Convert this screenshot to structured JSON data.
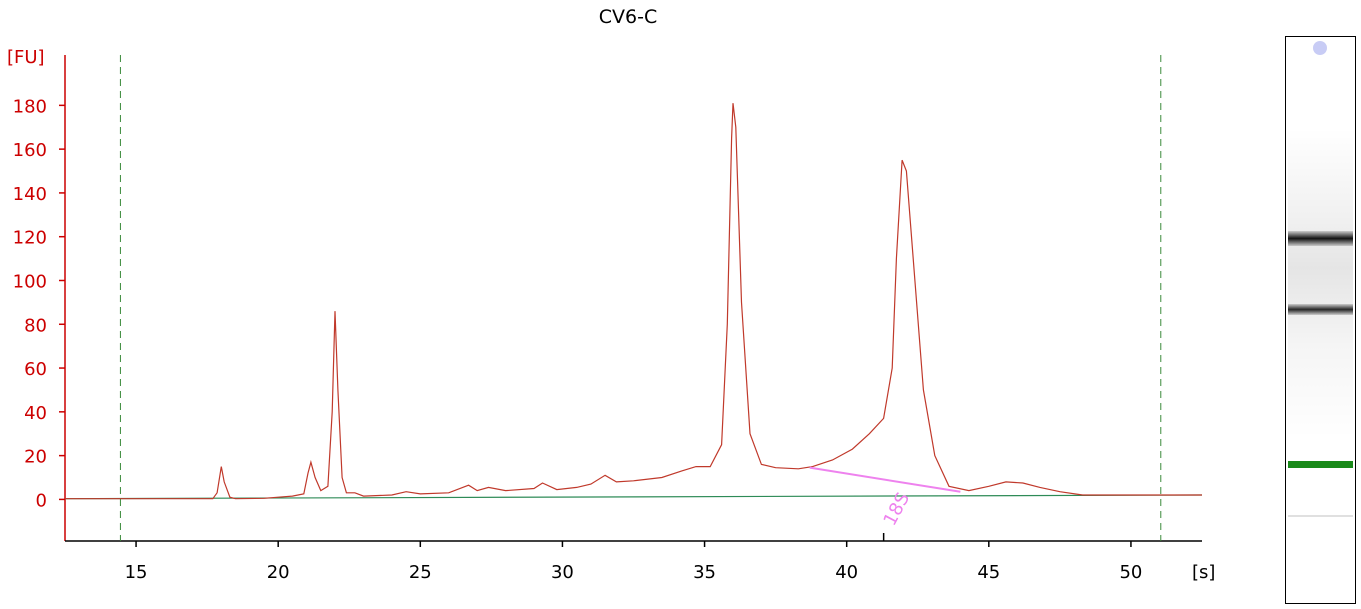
{
  "chart_data": {
    "type": "line",
    "title": "CV6-C",
    "ylabel": "[FU]",
    "xlabel": "[s]",
    "xlim": [
      12.5,
      52.5
    ],
    "ylim": [
      -19,
      203
    ],
    "x_ticks": [
      15,
      20,
      25,
      30,
      35,
      40,
      45,
      50
    ],
    "y_ticks": [
      0,
      20,
      40,
      60,
      80,
      100,
      120,
      140,
      160,
      180
    ],
    "vertical_markers": [
      14.45,
      51.05
    ],
    "series": [
      {
        "color": "#c0392b",
        "points": [
          [
            12.5,
            0.3
          ],
          [
            17.7,
            0.3
          ],
          [
            17.85,
            3
          ],
          [
            18.0,
            15
          ],
          [
            18.1,
            8
          ],
          [
            18.3,
            1
          ],
          [
            18.5,
            0.3
          ],
          [
            19.5,
            0.5
          ],
          [
            20.0,
            1
          ],
          [
            20.5,
            1.5
          ],
          [
            20.9,
            2.5
          ],
          [
            21.05,
            12
          ],
          [
            21.15,
            17
          ],
          [
            21.3,
            10
          ],
          [
            21.5,
            4
          ],
          [
            21.75,
            6
          ],
          [
            21.9,
            40
          ],
          [
            22.0,
            86
          ],
          [
            22.1,
            50
          ],
          [
            22.25,
            10
          ],
          [
            22.4,
            3
          ],
          [
            22.7,
            3
          ],
          [
            23.0,
            1.5
          ],
          [
            24.0,
            2
          ],
          [
            24.5,
            3.5
          ],
          [
            25.0,
            2.5
          ],
          [
            26.0,
            3
          ],
          [
            26.7,
            6.5
          ],
          [
            27.0,
            4
          ],
          [
            27.4,
            5.5
          ],
          [
            28.0,
            4
          ],
          [
            29.0,
            5
          ],
          [
            29.3,
            7.5
          ],
          [
            29.8,
            4.5
          ],
          [
            30.5,
            5.5
          ],
          [
            31.0,
            7
          ],
          [
            31.5,
            11
          ],
          [
            31.9,
            8
          ],
          [
            32.5,
            8.5
          ],
          [
            33.5,
            10
          ],
          [
            34.2,
            13
          ],
          [
            34.7,
            15
          ],
          [
            35.2,
            15
          ],
          [
            35.6,
            25
          ],
          [
            35.8,
            80
          ],
          [
            35.95,
            165
          ],
          [
            36.0,
            181
          ],
          [
            36.1,
            170
          ],
          [
            36.3,
            90
          ],
          [
            36.6,
            30
          ],
          [
            37.0,
            16
          ],
          [
            37.5,
            14.5
          ],
          [
            38.3,
            14
          ],
          [
            38.8,
            15
          ],
          [
            39.5,
            18
          ],
          [
            40.2,
            23
          ],
          [
            40.8,
            30
          ],
          [
            41.3,
            37
          ],
          [
            41.6,
            60
          ],
          [
            41.75,
            110
          ],
          [
            41.95,
            155
          ],
          [
            42.1,
            150
          ],
          [
            42.4,
            100
          ],
          [
            42.7,
            50
          ],
          [
            43.1,
            20
          ],
          [
            43.6,
            6
          ],
          [
            44.3,
            4
          ],
          [
            45.0,
            6
          ],
          [
            45.6,
            8
          ],
          [
            46.2,
            7.5
          ],
          [
            46.8,
            5.5
          ],
          [
            47.5,
            3.5
          ],
          [
            48.3,
            2
          ],
          [
            52.5,
            2
          ]
        ]
      },
      {
        "color": "#2e8b57",
        "points": [
          [
            12.5,
            0.3
          ],
          [
            52.5,
            2
          ]
        ]
      }
    ],
    "annotations": [
      {
        "type": "peak-baseline",
        "color": "#ee82ee",
        "from": [
          38.7,
          14.5
        ],
        "to": [
          44.0,
          3.5
        ]
      },
      {
        "type": "marker-label",
        "text": "18S",
        "x": 41.3,
        "color": "#ee82ee"
      }
    ]
  },
  "gel_lane": {
    "bands": [
      {
        "position": 0.356,
        "color": "#111111",
        "intensity": 1.0,
        "width": 0.025
      },
      {
        "position": 0.481,
        "color": "#111111",
        "intensity": 0.9,
        "width": 0.02
      },
      {
        "position": 0.755,
        "color": "#1a8a1a",
        "intensity": 1.0,
        "width": 0.012
      }
    ],
    "marker_color": "#c8ccf5"
  }
}
